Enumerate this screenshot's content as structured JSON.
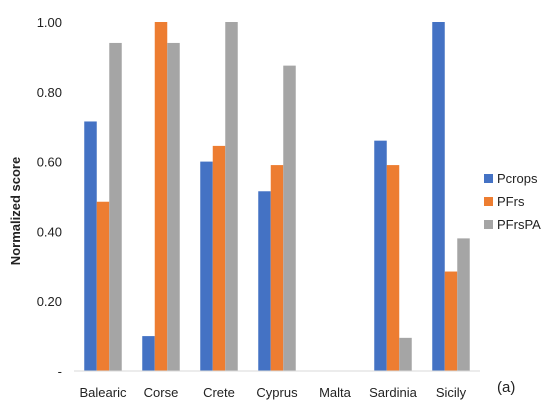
{
  "chart_data": {
    "type": "bar",
    "categories": [
      "Balearic",
      "Corse",
      "Crete",
      "Cyprus",
      "Malta",
      "Sardinia",
      "Sicily"
    ],
    "series": [
      {
        "name": "Pcrops",
        "color": "#4472C4",
        "values": [
          0.715,
          0.1,
          0.6,
          0.515,
          0.0,
          0.66,
          1.0
        ]
      },
      {
        "name": "PFrs",
        "color": "#ED7D31",
        "values": [
          0.485,
          1.0,
          0.645,
          0.59,
          0.0,
          0.59,
          0.285
        ]
      },
      {
        "name": "PFrsPA",
        "color": "#A5A5A5",
        "values": [
          0.94,
          0.94,
          1.0,
          0.875,
          0.0,
          0.095,
          0.38
        ]
      }
    ],
    "ylabel": "Normalized score",
    "ylim": [
      0,
      1
    ],
    "yticks": [
      {
        "value": 0,
        "label": "-"
      },
      {
        "value": 0.2,
        "label": "0.20"
      },
      {
        "value": 0.4,
        "label": "0.40"
      },
      {
        "value": 0.6,
        "label": "0.60"
      },
      {
        "value": 0.8,
        "label": "0.80"
      },
      {
        "value": 1.0,
        "label": "1.00"
      }
    ],
    "legend_position": "right",
    "grid": false,
    "annotation": "(a)"
  }
}
